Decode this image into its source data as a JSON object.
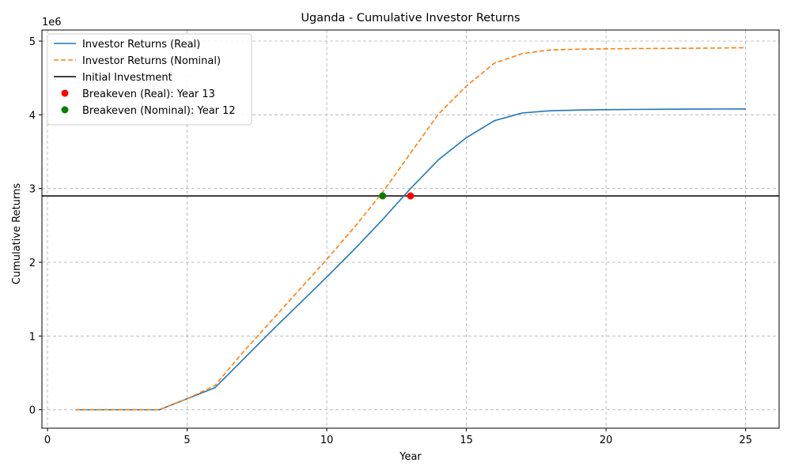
{
  "chart_data": {
    "type": "line",
    "title": "Uganda - Cumulative Investor Returns",
    "xlabel": "Year",
    "ylabel": "Cumulative Returns",
    "y_offset_label": "1e6",
    "xlim": [
      -0.2,
      26.2
    ],
    "ylim": [
      -250000,
      5150000
    ],
    "x_ticks": [
      0,
      5,
      10,
      15,
      20,
      25
    ],
    "y_ticks": [
      0,
      1000000,
      2000000,
      3000000,
      4000000,
      5000000
    ],
    "y_tick_labels": [
      "0",
      "1",
      "2",
      "3",
      "4",
      "5"
    ],
    "grid": true,
    "legend_position": "upper-left",
    "x": [
      1,
      2,
      3,
      4,
      5,
      6,
      7,
      8,
      9,
      10,
      11,
      12,
      13,
      14,
      15,
      16,
      17,
      18,
      19,
      20,
      21,
      22,
      23,
      24,
      25
    ],
    "series": [
      {
        "name": "Investor Returns (Real)",
        "color": "#1f77b4",
        "style": "solid",
        "values": [
          0,
          0,
          0,
          0,
          150000,
          300000,
          680000,
          1060000,
          1430000,
          1800000,
          2180000,
          2580000,
          3000000,
          3390000,
          3690000,
          3920000,
          4025000,
          4055000,
          4065000,
          4070000,
          4073000,
          4075000,
          4077000,
          4079000,
          4080000
        ]
      },
      {
        "name": "Investor Returns (Nominal)",
        "color": "#ff7f0e",
        "style": "dashed",
        "values": [
          0,
          0,
          0,
          0,
          150000,
          330000,
          780000,
          1200000,
          1620000,
          2040000,
          2480000,
          2950000,
          3480000,
          4010000,
          4390000,
          4700000,
          4830000,
          4880000,
          4890000,
          4895000,
          4898000,
          4900000,
          4903000,
          4906000,
          4910000
        ]
      }
    ],
    "hlines": [
      {
        "name": "Initial Investment",
        "color": "#000000",
        "value": 2900000
      }
    ],
    "points": [
      {
        "name": "Breakeven (Real): Year 13",
        "color": "#ff0000",
        "x": 13,
        "y": 2900000
      },
      {
        "name": "Breakeven (Nominal): Year 12",
        "color": "#008000",
        "x": 12,
        "y": 2900000
      }
    ]
  }
}
